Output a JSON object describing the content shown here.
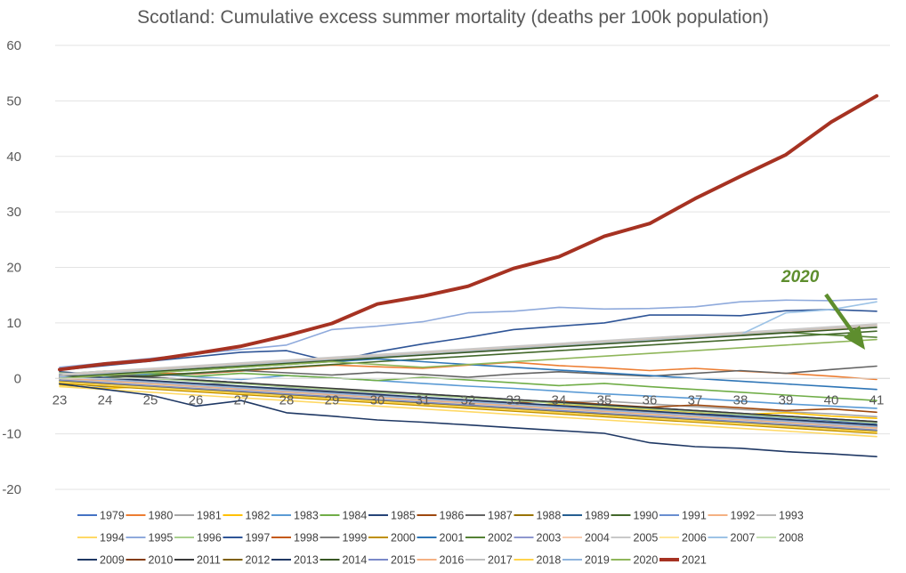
{
  "chart_data": {
    "type": "line",
    "title": "Scotland: Cumulative excess summer mortality (deaths per 100k population)",
    "xlabel": "",
    "ylabel": "",
    "categories": [
      "23",
      "24",
      "25",
      "26",
      "27",
      "28",
      "29",
      "30",
      "31",
      "32",
      "33",
      "34",
      "35",
      "36",
      "37",
      "38",
      "39",
      "40",
      "41"
    ],
    "ylim": [
      -20,
      60
    ],
    "yticks": [
      "-20",
      "-10",
      "0",
      "10",
      "20",
      "30",
      "40",
      "50",
      "60"
    ],
    "grid": true,
    "legend_position": "bottom",
    "annotation": {
      "text": "2020",
      "color": "#5e8e2e",
      "points_to": "2020 series at week 41"
    },
    "series": [
      {
        "name": "1979",
        "color": "#4472c4",
        "values": [
          -0.8,
          -1.5,
          -1.2,
          -2.1,
          -2.6,
          -2.4,
          -3.0,
          -3.4,
          -4.1,
          -4.4,
          -4.9,
          -5.3,
          -5.6,
          -6.0,
          -6.4,
          -6.6,
          -7.1,
          -7.6,
          -8.0
        ]
      },
      {
        "name": "1980",
        "color": "#ed7d31",
        "values": [
          0.3,
          0.6,
          1.0,
          0.8,
          1.3,
          1.9,
          2.4,
          2.1,
          1.8,
          2.4,
          2.9,
          2.3,
          1.9,
          1.4,
          1.8,
          1.3,
          0.9,
          0.4,
          -0.2
        ]
      },
      {
        "name": "1981",
        "color": "#a5a5a5",
        "values": [
          0.5,
          -0.2,
          -0.5,
          -1.1,
          -0.8,
          -1.6,
          -2.1,
          -2.6,
          -3.0,
          -3.4,
          -3.9,
          -4.3,
          -4.1,
          -4.6,
          -5.1,
          -5.6,
          -6.0,
          -6.4,
          -6.9
        ]
      },
      {
        "name": "1982",
        "color": "#ffc000",
        "values": [
          -1.2,
          -1.8,
          -1.5,
          -2.4,
          -2.1,
          -2.8,
          -3.3,
          -3.6,
          -4.1,
          -4.5,
          -5.0,
          -4.6,
          -5.1,
          -5.6,
          -6.1,
          -6.5,
          -6.2,
          -6.8,
          -7.2
        ]
      },
      {
        "name": "1983",
        "color": "#5b9bd5",
        "values": [
          -0.4,
          0.2,
          0.8,
          0.3,
          -0.2,
          0.5,
          0.1,
          -0.4,
          -0.9,
          -1.4,
          -1.8,
          -2.3,
          -2.8,
          -3.2,
          -3.6,
          -4.1,
          -4.6,
          -5.0,
          -5.4
        ]
      },
      {
        "name": "1984",
        "color": "#70ad47",
        "values": [
          0.8,
          1.3,
          0.9,
          0.4,
          0.9,
          0.5,
          0.1,
          -0.4,
          0.2,
          -0.3,
          -0.8,
          -1.3,
          -0.9,
          -1.5,
          -2.0,
          -2.5,
          -3.0,
          -3.5,
          -4.0
        ]
      },
      {
        "name": "1985",
        "color": "#264478",
        "values": [
          1.2,
          0.6,
          0.2,
          -0.3,
          -0.8,
          -1.4,
          -1.9,
          -2.4,
          -2.8,
          -3.3,
          -3.8,
          -4.3,
          -4.8,
          -5.3,
          -5.8,
          -6.3,
          -6.8,
          -7.3,
          -7.8
        ]
      },
      {
        "name": "1986",
        "color": "#9e480e",
        "values": [
          0.0,
          -0.6,
          -1.1,
          -1.6,
          -2.0,
          -2.5,
          -3.1,
          -3.0,
          -3.5,
          -4.0,
          -4.4,
          -4.1,
          -4.7,
          -5.2,
          -4.8,
          -5.3,
          -5.8,
          -5.5,
          -6.1
        ]
      },
      {
        "name": "1987",
        "color": "#636363",
        "values": [
          0.2,
          0.7,
          0.4,
          0.9,
          1.4,
          1.0,
          0.6,
          1.1,
          0.7,
          0.2,
          0.8,
          1.2,
          0.8,
          0.4,
          0.9,
          1.4,
          0.9,
          1.6,
          2.2
        ]
      },
      {
        "name": "1988",
        "color": "#997300",
        "values": [
          -0.6,
          -1.1,
          -1.6,
          -1.3,
          -1.8,
          -2.3,
          -2.8,
          -3.3,
          -3.8,
          -4.3,
          -4.8,
          -5.3,
          -5.8,
          -6.2,
          -6.7,
          -7.2,
          -7.6,
          -8.1,
          -8.6
        ]
      },
      {
        "name": "1989",
        "color": "#255e91",
        "values": [
          -1.0,
          -0.5,
          -1.0,
          -1.5,
          -2.0,
          -2.5,
          -3.0,
          -3.4,
          -3.9,
          -4.4,
          -4.9,
          -5.3,
          -5.8,
          -6.2,
          -6.6,
          -7.0,
          -7.5,
          -7.9,
          -8.3
        ]
      },
      {
        "name": "1990",
        "color": "#43682b",
        "values": [
          0.6,
          0.1,
          0.5,
          1.0,
          1.5,
          2.0,
          2.5,
          3.0,
          3.5,
          4.0,
          4.5,
          5.0,
          5.5,
          6.0,
          6.5,
          7.0,
          7.5,
          8.0,
          8.5
        ]
      },
      {
        "name": "1991",
        "color": "#698ed0",
        "values": [
          -0.5,
          -1.0,
          -1.5,
          -1.9,
          -2.3,
          -2.8,
          -3.2,
          -3.7,
          -4.1,
          -4.6,
          -5.0,
          -5.5,
          -6.0,
          -6.4,
          -6.8,
          -7.3,
          -7.7,
          -8.2,
          -8.6
        ]
      },
      {
        "name": "1992",
        "color": "#f4b183",
        "values": [
          0.4,
          0.9,
          1.4,
          1.9,
          2.4,
          2.9,
          3.4,
          3.9,
          4.4,
          4.9,
          5.4,
          5.9,
          6.4,
          6.9,
          7.4,
          7.9,
          8.4,
          8.9,
          9.5
        ]
      },
      {
        "name": "1993",
        "color": "#b7b7b7",
        "values": [
          -0.3,
          -0.8,
          -1.3,
          -1.8,
          -2.3,
          -2.8,
          -3.3,
          -3.8,
          -4.3,
          -4.8,
          -5.3,
          -5.8,
          -6.3,
          -6.8,
          -7.3,
          -7.8,
          -8.3,
          -8.8,
          -9.3
        ]
      },
      {
        "name": "1994",
        "color": "#ffd966",
        "values": [
          -1.5,
          -2.0,
          -2.5,
          -3.0,
          -3.5,
          -4.0,
          -4.5,
          -5.0,
          -5.5,
          -6.0,
          -6.5,
          -7.0,
          -7.5,
          -8.0,
          -8.5,
          -9.0,
          -9.5,
          -10.0,
          -10.5
        ]
      },
      {
        "name": "1995",
        "color": "#8faadc",
        "values": [
          2.0,
          2.8,
          3.6,
          4.4,
          5.2,
          6.0,
          8.8,
          9.4,
          10.2,
          11.8,
          12.1,
          12.8,
          12.5,
          12.6,
          12.9,
          13.8,
          14.1,
          14.0,
          14.3
        ]
      },
      {
        "name": "1996",
        "color": "#a9d18e",
        "values": [
          1.0,
          0.5,
          0.0,
          -0.5,
          -1.0,
          -1.5,
          -2.0,
          -2.5,
          -3.0,
          -3.5,
          -4.0,
          -4.5,
          -5.0,
          -5.5,
          -6.0,
          -6.5,
          -7.0,
          -7.5,
          -8.0
        ]
      },
      {
        "name": "1997",
        "color": "#2f5597",
        "values": [
          1.5,
          2.3,
          3.1,
          3.9,
          4.7,
          5.0,
          3.0,
          4.8,
          6.2,
          7.4,
          8.8,
          9.4,
          10.0,
          11.4,
          11.4,
          11.3,
          12.2,
          12.4,
          12.1
        ]
      },
      {
        "name": "1998",
        "color": "#c55a11",
        "values": [
          0.2,
          -0.3,
          -0.8,
          -1.3,
          -1.8,
          -2.3,
          -2.8,
          -3.3,
          -3.8,
          -4.3,
          -4.8,
          -5.3,
          -5.8,
          -6.3,
          -6.8,
          -7.3,
          -7.8,
          -8.3,
          -8.8
        ]
      },
      {
        "name": "1999",
        "color": "#7f7f7f",
        "values": [
          0.5,
          0.0,
          -0.5,
          -1.0,
          -1.5,
          -2.0,
          -2.5,
          -3.0,
          -3.5,
          -4.0,
          -4.5,
          -5.0,
          -5.5,
          -6.0,
          -6.5,
          -7.0,
          -7.5,
          -8.0,
          -8.5
        ]
      },
      {
        "name": "2000",
        "color": "#bf9000",
        "values": [
          -0.9,
          -1.4,
          -1.9,
          -2.4,
          -2.9,
          -3.4,
          -3.9,
          -4.4,
          -4.9,
          -5.4,
          -5.9,
          -6.4,
          -6.9,
          -7.4,
          -7.9,
          -8.4,
          -8.9,
          -9.4,
          -9.9
        ]
      },
      {
        "name": "2001",
        "color": "#2e75b6",
        "values": [
          0.0,
          0.5,
          1.0,
          1.5,
          2.0,
          2.5,
          3.0,
          3.5,
          3.0,
          2.5,
          2.0,
          1.5,
          1.0,
          0.5,
          0.0,
          -0.5,
          -1.0,
          -1.5,
          -2.0
        ]
      },
      {
        "name": "2002",
        "color": "#548235",
        "values": [
          0.3,
          0.8,
          1.3,
          1.8,
          2.3,
          2.8,
          3.3,
          3.8,
          4.3,
          4.8,
          5.3,
          5.8,
          6.3,
          6.8,
          7.3,
          7.8,
          8.3,
          7.8,
          7.4
        ]
      },
      {
        "name": "2003",
        "color": "#8e97cf",
        "values": [
          0.0,
          -0.5,
          -1.0,
          -1.5,
          -2.0,
          -2.5,
          -3.0,
          -3.5,
          -4.0,
          -4.5,
          -5.0,
          -5.5,
          -6.0,
          -6.5,
          -7.0,
          -7.5,
          -8.0,
          -8.5,
          -9.0
        ]
      },
      {
        "name": "2004",
        "color": "#f8cbad",
        "values": [
          0.6,
          1.1,
          1.6,
          2.1,
          2.6,
          3.1,
          3.6,
          4.1,
          4.6,
          5.1,
          5.6,
          6.1,
          6.6,
          7.1,
          7.6,
          8.1,
          8.6,
          9.1,
          9.6
        ]
      },
      {
        "name": "2005",
        "color": "#c9c9c9",
        "values": [
          0.8,
          1.3,
          1.8,
          2.3,
          2.8,
          3.3,
          3.8,
          4.3,
          4.8,
          5.3,
          5.8,
          6.3,
          6.8,
          7.3,
          7.8,
          8.3,
          8.8,
          9.3,
          9.8
        ]
      },
      {
        "name": "2006",
        "color": "#ffe699",
        "values": [
          -0.2,
          -0.7,
          -1.2,
          -1.7,
          -2.2,
          -2.7,
          -3.2,
          -3.7,
          -4.2,
          -4.7,
          -5.2,
          -5.7,
          -6.2,
          -6.7,
          -7.2,
          -7.7,
          -8.2,
          -8.7,
          -9.2
        ]
      },
      {
        "name": "2007",
        "color": "#9dc3e6",
        "values": [
          0.4,
          0.9,
          1.4,
          1.9,
          2.4,
          2.9,
          3.4,
          3.9,
          4.4,
          4.9,
          5.4,
          5.9,
          6.4,
          6.9,
          7.4,
          7.9,
          11.8,
          12.4,
          13.8
        ]
      },
      {
        "name": "2008",
        "color": "#c5e0b4",
        "values": [
          -0.5,
          -1.0,
          -1.5,
          -2.0,
          -2.5,
          -3.0,
          -3.5,
          -4.0,
          -4.5,
          -5.0,
          -5.5,
          -6.0,
          -6.5,
          -7.0,
          -7.5,
          -8.0,
          -8.5,
          -9.0,
          -9.5
        ]
      },
      {
        "name": "2009",
        "color": "#1f3864",
        "values": [
          -1.0,
          -2.0,
          -3.0,
          -5.0,
          -4.0,
          -6.2,
          -6.8,
          -7.5,
          -7.9,
          -8.4,
          -8.9,
          -9.4,
          -9.9,
          -11.6,
          -12.3,
          -12.6,
          -13.2,
          -13.6,
          -14.1
        ]
      },
      {
        "name": "2010",
        "color": "#843c0c",
        "values": [
          0.3,
          -0.2,
          -0.7,
          -1.2,
          -1.7,
          -2.2,
          -2.7,
          -3.2,
          -3.7,
          -4.2,
          -4.7,
          -5.2,
          -5.7,
          -6.2,
          -6.7,
          -7.2,
          -7.7,
          -8.2,
          -8.7
        ]
      },
      {
        "name": "2011",
        "color": "#3a3a3a",
        "values": [
          0.0,
          0.5,
          0.2,
          -0.3,
          -0.8,
          -1.3,
          -1.8,
          -2.3,
          -2.8,
          -3.3,
          -3.8,
          -4.3,
          -4.8,
          -5.3,
          -5.8,
          -6.3,
          -6.8,
          -7.3,
          -7.8
        ]
      },
      {
        "name": "2012",
        "color": "#7f6000",
        "values": [
          -0.4,
          -0.9,
          -1.4,
          -1.9,
          -2.4,
          -2.9,
          -3.4,
          -3.9,
          -4.4,
          -4.9,
          -5.4,
          -5.9,
          -6.4,
          -6.9,
          -7.4,
          -7.9,
          -8.4,
          -8.9,
          -9.4
        ]
      },
      {
        "name": "2013",
        "color": "#203864",
        "values": [
          0.6,
          0.1,
          -0.4,
          -0.9,
          -1.4,
          -1.9,
          -2.4,
          -2.9,
          -3.4,
          -3.9,
          -4.4,
          -4.9,
          -5.4,
          -5.9,
          -6.4,
          -6.9,
          -7.4,
          -7.9,
          -8.4
        ]
      },
      {
        "name": "2014",
        "color": "#385723",
        "values": [
          0.2,
          0.7,
          1.2,
          1.7,
          2.2,
          2.7,
          3.2,
          3.7,
          4.2,
          4.7,
          5.2,
          5.7,
          6.2,
          6.7,
          7.2,
          7.7,
          8.2,
          8.7,
          9.2
        ]
      },
      {
        "name": "2015",
        "color": "#7a89c9",
        "values": [
          -0.3,
          -0.8,
          -1.3,
          -1.8,
          -2.3,
          -2.8,
          -3.3,
          -3.8,
          -4.3,
          -4.8,
          -5.3,
          -5.8,
          -6.3,
          -6.8,
          -7.3,
          -7.8,
          -8.3,
          -8.8,
          -9.3
        ]
      },
      {
        "name": "2016",
        "color": "#f4b183",
        "values": [
          0.1,
          -0.4,
          -0.9,
          -1.4,
          -1.9,
          -2.4,
          -2.9,
          -3.4,
          -3.9,
          -4.4,
          -4.9,
          -5.4,
          -5.9,
          -6.4,
          -6.9,
          -7.4,
          -7.9,
          -8.4,
          -8.9
        ]
      },
      {
        "name": "2017",
        "color": "#bfbfbf",
        "values": [
          0.5,
          1.0,
          1.5,
          2.0,
          2.5,
          3.0,
          3.5,
          4.0,
          4.5,
          5.0,
          5.5,
          6.0,
          6.5,
          7.0,
          7.5,
          8.0,
          8.5,
          9.0,
          9.5
        ]
      },
      {
        "name": "2018",
        "color": "#ffd44d",
        "values": [
          -0.7,
          -1.2,
          -1.7,
          -2.2,
          -2.7,
          -3.2,
          -3.7,
          -4.2,
          -4.7,
          -5.2,
          -5.7,
          -6.2,
          -6.7,
          -7.2,
          -7.7,
          -8.2,
          -8.7,
          -9.2,
          -9.7
        ]
      },
      {
        "name": "2019",
        "color": "#8fb4de",
        "values": [
          0.3,
          -0.2,
          -0.7,
          -1.2,
          -1.7,
          -2.2,
          -2.7,
          -3.2,
          -3.7,
          -4.2,
          -4.7,
          -5.2,
          -5.7,
          -6.2,
          -6.7,
          -7.2,
          -7.7,
          -8.2,
          -8.7
        ]
      },
      {
        "name": "2020",
        "color": "#8fb65a",
        "values": [
          0.0,
          0.5,
          1.0,
          1.5,
          2.0,
          2.5,
          3.0,
          2.5,
          2.0,
          2.5,
          3.0,
          3.5,
          4.0,
          4.5,
          5.0,
          5.5,
          6.0,
          6.5,
          7.0
        ]
      },
      {
        "name": "2021",
        "color": "#a63222",
        "values": [
          1.6,
          2.6,
          3.3,
          4.5,
          5.8,
          7.7,
          9.9,
          13.4,
          14.8,
          16.6,
          19.8,
          21.9,
          25.6,
          27.9,
          32.4,
          36.4,
          40.3,
          46.2,
          50.9
        ]
      }
    ]
  }
}
